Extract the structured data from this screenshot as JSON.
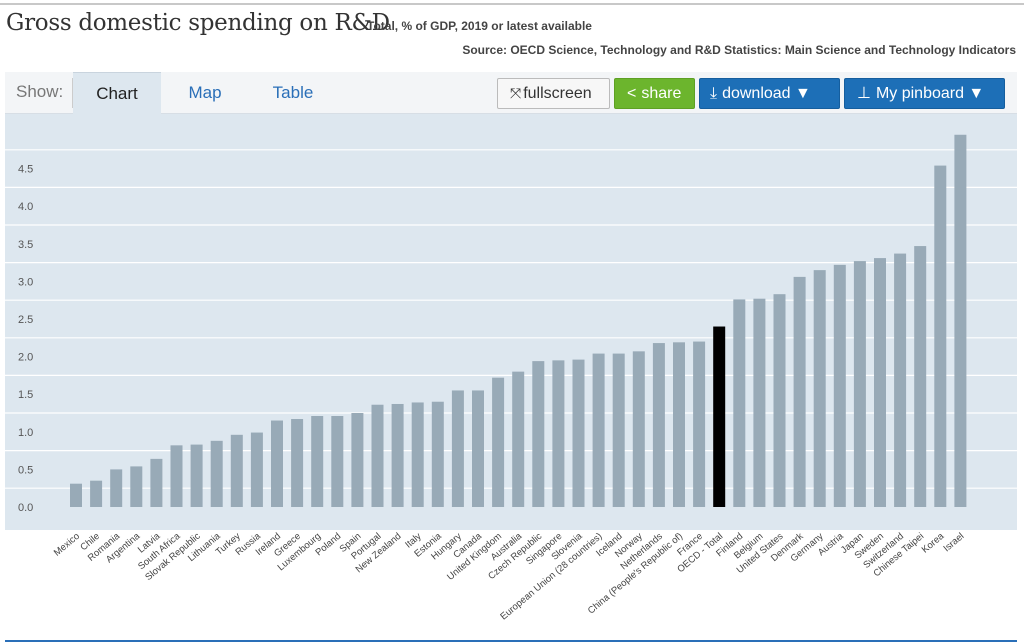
{
  "header": {
    "title": "Gross domestic spending on R&D",
    "subtitle": "Total, % of GDP, 2019 or latest available",
    "source": "Source: OECD Science, Technology and R&D Statistics: Main Science and Technology Indicators"
  },
  "toolbar": {
    "show_label": "Show:",
    "tabs": [
      {
        "label": "Chart",
        "active": true
      },
      {
        "label": "Map",
        "active": false
      },
      {
        "label": "Table",
        "active": false
      }
    ],
    "fullscreen_label": "fullscreen",
    "share_label": "share",
    "download_label": "download ▼",
    "pinboard_label": "My pinboard ▼"
  },
  "colors": {
    "bar": "#98aab7",
    "highlight": "#000000",
    "plot_bg": "#dde7ef",
    "grid": "#ffffff",
    "share_green": "#6cb52d",
    "primary_blue": "#1d6fb7",
    "link_blue": "#2a6fb8"
  },
  "chart_data": {
    "type": "bar",
    "title": "Gross domestic spending on R&D",
    "subtitle": "Total, % of GDP, 2019 or latest available",
    "ylim": [
      0,
      5
    ],
    "yticks": [
      "0.0",
      "0.5",
      "1.0",
      "1.5",
      "2.0",
      "2.5",
      "3.0",
      "3.5",
      "4.0",
      "4.5"
    ],
    "grid": true,
    "highlight": "OECD - Total",
    "categories": [
      "Mexico",
      "Chile",
      "Romania",
      "Argentina",
      "Latvia",
      "South Africa",
      "Slovak Republic",
      "Lithuania",
      "Turkey",
      "Russia",
      "Ireland",
      "Greece",
      "Luxembourg",
      "Poland",
      "Spain",
      "Portugal",
      "New Zealand",
      "Italy",
      "Estonia",
      "Hungary",
      "Canada",
      "United Kingdom",
      "Australia",
      "Czech Republic",
      "Singapore",
      "Slovenia",
      "European Union (28 countries)",
      "Iceland",
      "Norway",
      "Netherlands",
      "China (People's Republic of)",
      "France",
      "OECD - Total",
      "Finland",
      "Belgium",
      "United States",
      "Denmark",
      "Germany",
      "Austria",
      "Japan",
      "Sweden",
      "Switzerland",
      "Chinese Taipei",
      "Korea",
      "Israel"
    ],
    "values": [
      0.31,
      0.35,
      0.5,
      0.54,
      0.64,
      0.82,
      0.83,
      0.88,
      0.96,
      0.99,
      1.15,
      1.17,
      1.21,
      1.21,
      1.25,
      1.36,
      1.37,
      1.39,
      1.4,
      1.55,
      1.55,
      1.72,
      1.8,
      1.94,
      1.95,
      1.96,
      2.04,
      2.04,
      2.07,
      2.18,
      2.19,
      2.2,
      2.4,
      2.76,
      2.77,
      2.83,
      3.06,
      3.15,
      3.22,
      3.27,
      3.31,
      3.37,
      3.47,
      4.54,
      4.95
    ]
  }
}
